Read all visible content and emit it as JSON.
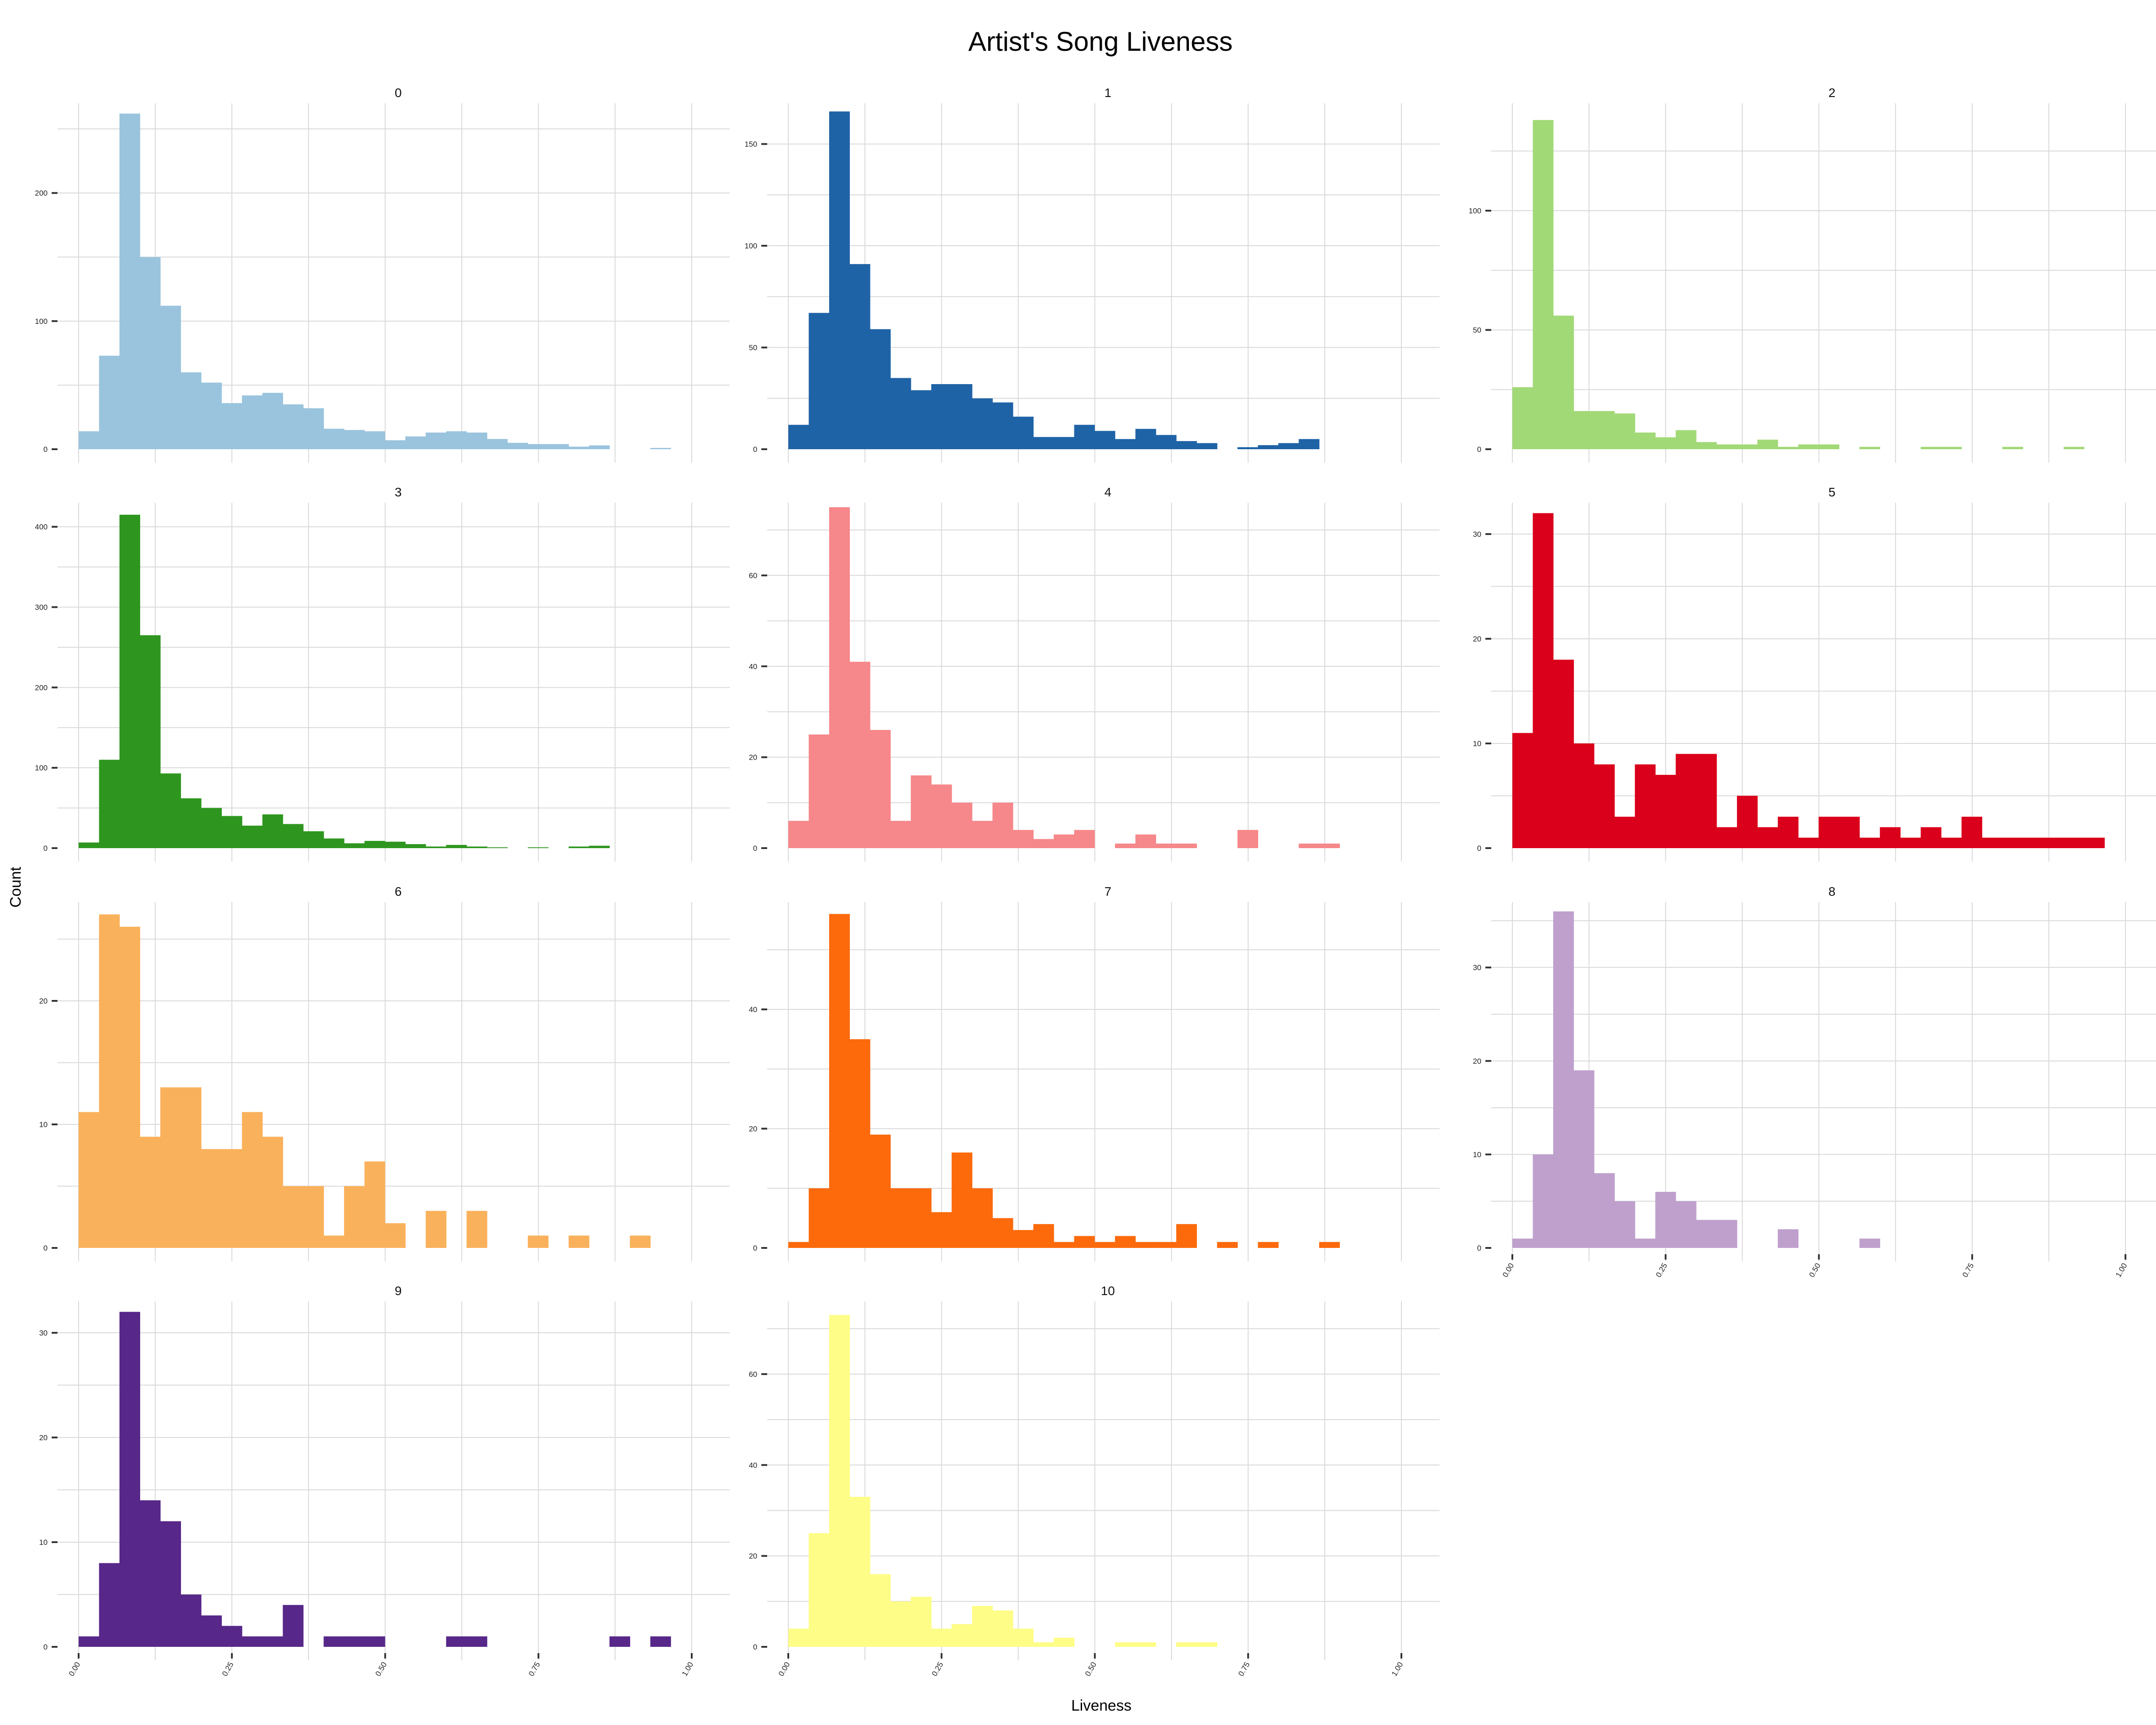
{
  "chart_data": {
    "type": "bar",
    "title": "Artist's Song Liveness",
    "xlabel": "Liveness",
    "ylabel": "Count",
    "xlim": [
      0,
      1
    ],
    "x_ticks": [
      0,
      0.25,
      0.5,
      0.75,
      1.0
    ],
    "x_tick_labels": [
      "0.00",
      "0.25",
      "0.50",
      "0.75",
      "1.00"
    ],
    "bin_width": 0.0333,
    "bin_start": 0.0167,
    "grid": true,
    "legend": "none",
    "panels": [
      {
        "label": "0",
        "color": "#9ac4dd",
        "yticks": [
          0,
          100,
          200
        ],
        "ylim": [
          0,
          270
        ],
        "counts": [
          14,
          73,
          262,
          150,
          112,
          60,
          52,
          36,
          42,
          44,
          35,
          32,
          16,
          15,
          14,
          7,
          10,
          13,
          14,
          13,
          8,
          5,
          4,
          4,
          2,
          3,
          0,
          0,
          1,
          0
        ]
      },
      {
        "label": "1",
        "color": "#1f63a7",
        "yticks": [
          0,
          50,
          100,
          150
        ],
        "ylim": [
          0,
          170
        ],
        "counts": [
          12,
          67,
          166,
          91,
          59,
          35,
          29,
          32,
          32,
          25,
          23,
          16,
          6,
          6,
          12,
          9,
          5,
          10,
          7,
          4,
          3,
          0,
          1,
          2,
          3,
          5,
          0,
          0,
          0,
          0
        ]
      },
      {
        "label": "2",
        "color": "#a2d977",
        "yticks": [
          0,
          50,
          100
        ],
        "ylim": [
          0,
          145
        ],
        "counts": [
          26,
          138,
          56,
          16,
          16,
          15,
          7,
          5,
          8,
          3,
          2,
          2,
          4,
          1,
          2,
          2,
          0,
          1,
          0,
          0,
          1,
          1,
          0,
          0,
          1,
          0,
          0,
          1,
          0,
          0
        ]
      },
      {
        "label": "3",
        "color": "#2e961f",
        "yticks": [
          0,
          100,
          200,
          300,
          400
        ],
        "ylim": [
          0,
          430
        ],
        "counts": [
          7,
          110,
          415,
          265,
          93,
          62,
          50,
          40,
          28,
          42,
          30,
          21,
          12,
          6,
          9,
          8,
          5,
          2,
          4,
          2,
          1,
          0,
          1,
          0,
          2,
          3,
          0,
          0,
          0,
          0
        ]
      },
      {
        "label": "4",
        "color": "#f6878a",
        "yticks": [
          0,
          20,
          40,
          60
        ],
        "ylim": [
          0,
          76
        ],
        "counts": [
          6,
          25,
          75,
          41,
          26,
          6,
          16,
          14,
          10,
          6,
          10,
          4,
          2,
          3,
          4,
          0,
          1,
          3,
          1,
          1,
          0,
          0,
          4,
          0,
          0,
          1,
          1,
          0,
          0,
          0
        ]
      },
      {
        "label": "5",
        "color": "#da001b",
        "yticks": [
          0,
          10,
          20,
          30
        ],
        "ylim": [
          0,
          33
        ],
        "counts": [
          11,
          32,
          18,
          10,
          8,
          3,
          8,
          7,
          9,
          9,
          2,
          5,
          2,
          3,
          1,
          3,
          3,
          1,
          2,
          1,
          2,
          1,
          3,
          1,
          1,
          1,
          1,
          1,
          1,
          0
        ]
      },
      {
        "label": "6",
        "color": "#fab15b",
        "yticks": [
          0,
          10,
          20
        ],
        "ylim": [
          0,
          28
        ],
        "counts": [
          11,
          27,
          26,
          9,
          13,
          13,
          8,
          8,
          11,
          9,
          5,
          5,
          1,
          5,
          7,
          2,
          0,
          3,
          0,
          3,
          0,
          0,
          1,
          0,
          1,
          0,
          0,
          1,
          0,
          0
        ]
      },
      {
        "label": "7",
        "color": "#fc6a0c",
        "yticks": [
          0,
          20,
          40
        ],
        "ylim": [
          0,
          58
        ],
        "counts": [
          1,
          10,
          56,
          35,
          19,
          10,
          10,
          6,
          16,
          10,
          5,
          3,
          4,
          1,
          2,
          1,
          2,
          1,
          1,
          4,
          0,
          1,
          0,
          1,
          0,
          0,
          1,
          0,
          0,
          0
        ]
      },
      {
        "label": "8",
        "color": "#bfa0cd",
        "yticks": [
          0,
          10,
          20,
          30
        ],
        "ylim": [
          0,
          37
        ],
        "counts": [
          1,
          10,
          36,
          19,
          8,
          5,
          1,
          6,
          5,
          3,
          3,
          0,
          0,
          2,
          0,
          0,
          0,
          1,
          0,
          0,
          0,
          0,
          0,
          0,
          0,
          0,
          0,
          0,
          0,
          0
        ]
      },
      {
        "label": "9",
        "color": "#572789",
        "yticks": [
          0,
          10,
          20,
          30
        ],
        "ylim": [
          0,
          33
        ],
        "counts": [
          1,
          8,
          32,
          14,
          12,
          5,
          3,
          2,
          1,
          1,
          4,
          0,
          1,
          1,
          1,
          0,
          0,
          0,
          1,
          1,
          0,
          0,
          0,
          0,
          0,
          0,
          1,
          0,
          1,
          0
        ]
      },
      {
        "label": "10",
        "color": "#fefd87",
        "yticks": [
          0,
          20,
          40,
          60
        ],
        "ylim": [
          0,
          76
        ],
        "counts": [
          4,
          25,
          73,
          33,
          16,
          10,
          11,
          4,
          5,
          9,
          8,
          4,
          1,
          2,
          0,
          0,
          1,
          1,
          0,
          1,
          1,
          0,
          0,
          0,
          0,
          0,
          0,
          0,
          0,
          0
        ]
      }
    ]
  }
}
